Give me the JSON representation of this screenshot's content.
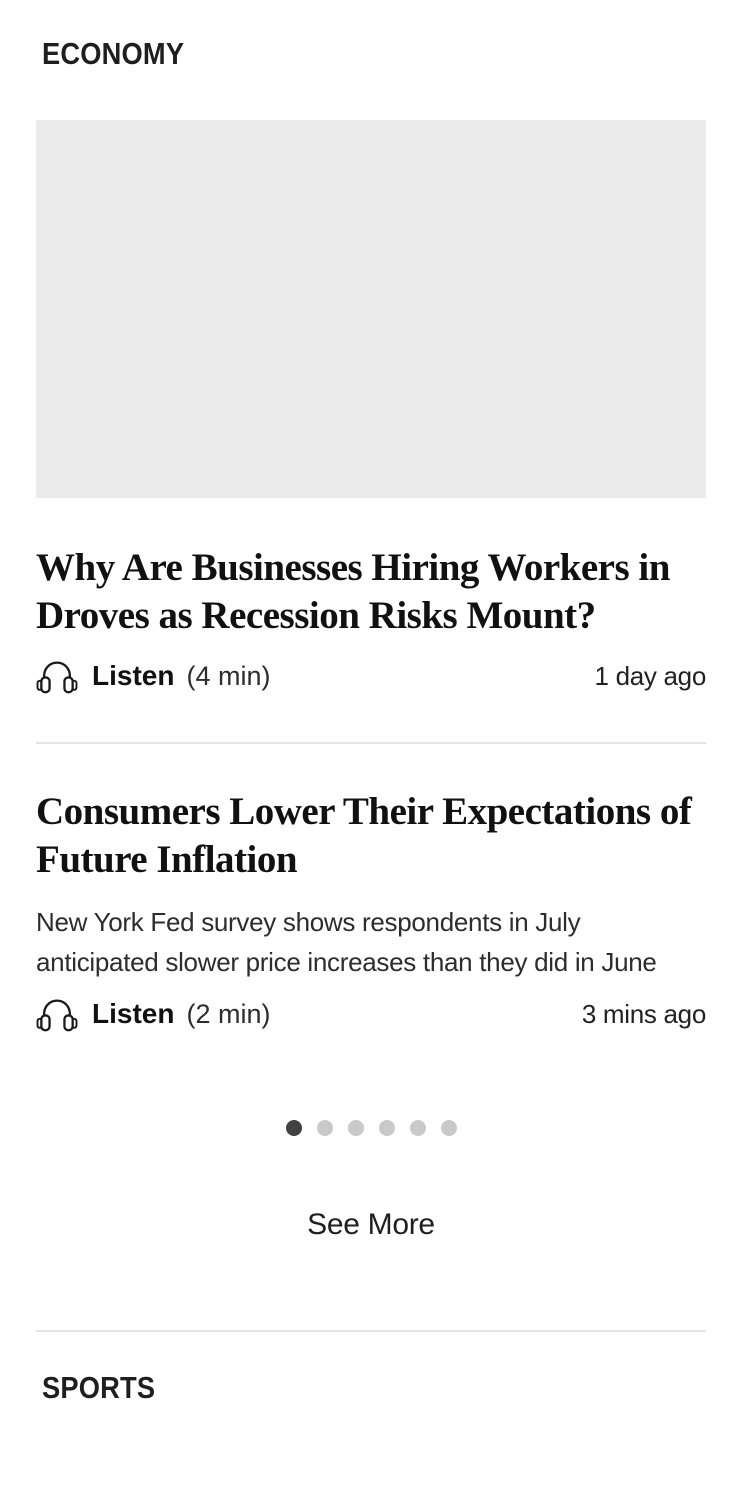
{
  "colors": {
    "text_primary": "#1a1a1a",
    "text_secondary": "#2d2d2d",
    "image_placeholder": "#ebebeb",
    "divider": "#e4e4e4",
    "dot_active": "#414141",
    "dot_inactive": "#c9c9c9"
  },
  "economy": {
    "label": "ECONOMY",
    "articles": [
      {
        "title": "Why Are Businesses Hiring Workers in Droves as Recession Risks Mount?",
        "listen_label": "Listen",
        "listen_duration": "(4 min)",
        "timestamp": "1 day ago"
      },
      {
        "title": "Consumers Lower Their Expectations of Future Inflation",
        "deck": "New York Fed survey shows respondents in July anticipated slower price increases than they did in June",
        "listen_label": "Listen",
        "listen_duration": "(2 min)",
        "timestamp": "3 mins ago"
      }
    ],
    "carousel": {
      "total_dots": 6,
      "active_dot": 1
    },
    "see_more_label": "See More"
  },
  "sports": {
    "label": "SPORTS"
  }
}
